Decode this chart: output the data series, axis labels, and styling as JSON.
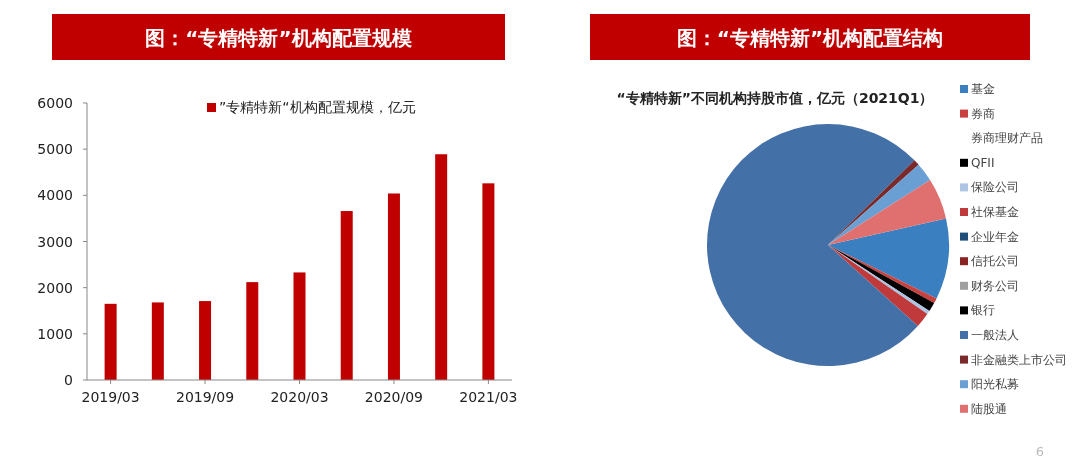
{
  "chart_data": [
    {
      "type": "bar",
      "title": "图：“专精特新”机构配置规模",
      "categories": [
        "2019/03",
        null,
        "2019/09",
        null,
        "2020/03",
        null,
        "2020/09",
        null,
        "2021/03"
      ],
      "series": [
        {
          "name": "”专精特新“机构配置规模，亿元",
          "color": "#c00000",
          "values": [
            1650,
            1680,
            1710,
            2120,
            2330,
            3660,
            4040,
            4890,
            4260
          ]
        }
      ],
      "ylim": [
        0,
        6000
      ],
      "yticks": [
        0,
        1000,
        2000,
        3000,
        4000,
        5000,
        6000
      ],
      "legend": "top",
      "grid": false
    },
    {
      "type": "pie",
      "title": "图：“专精特新”机构配置结构",
      "subtitle": "“专精特新”不同机构持股市值，亿元（2021Q1）",
      "categories": [
        "基金",
        "券商",
        "券商理财产品",
        "QFII",
        "保险公司",
        "社保基金",
        "企业年金",
        "信托公司",
        "财务公司",
        "银行",
        "一般法人",
        "非金融类上市公司",
        "阳光私募",
        "陆股通"
      ],
      "values": [
        10.8,
        0.7,
        0,
        1.2,
        0.5,
        2.0,
        0,
        0,
        0,
        0,
        76.0,
        0.8,
        2.5,
        5.5
      ],
      "colors": [
        "#3a7fc0",
        "#c9413f",
        "#ffffff",
        "#000000",
        "#adc5e3",
        "#c0393b",
        "#1f4e79",
        "#8b2323",
        "#a0a0a0",
        "#000000",
        "#4470a8",
        "#7a2a2a",
        "#6a9fd4",
        "#e07070"
      ],
      "legend": "right",
      "annotations": [
        "6"
      ]
    }
  ]
}
